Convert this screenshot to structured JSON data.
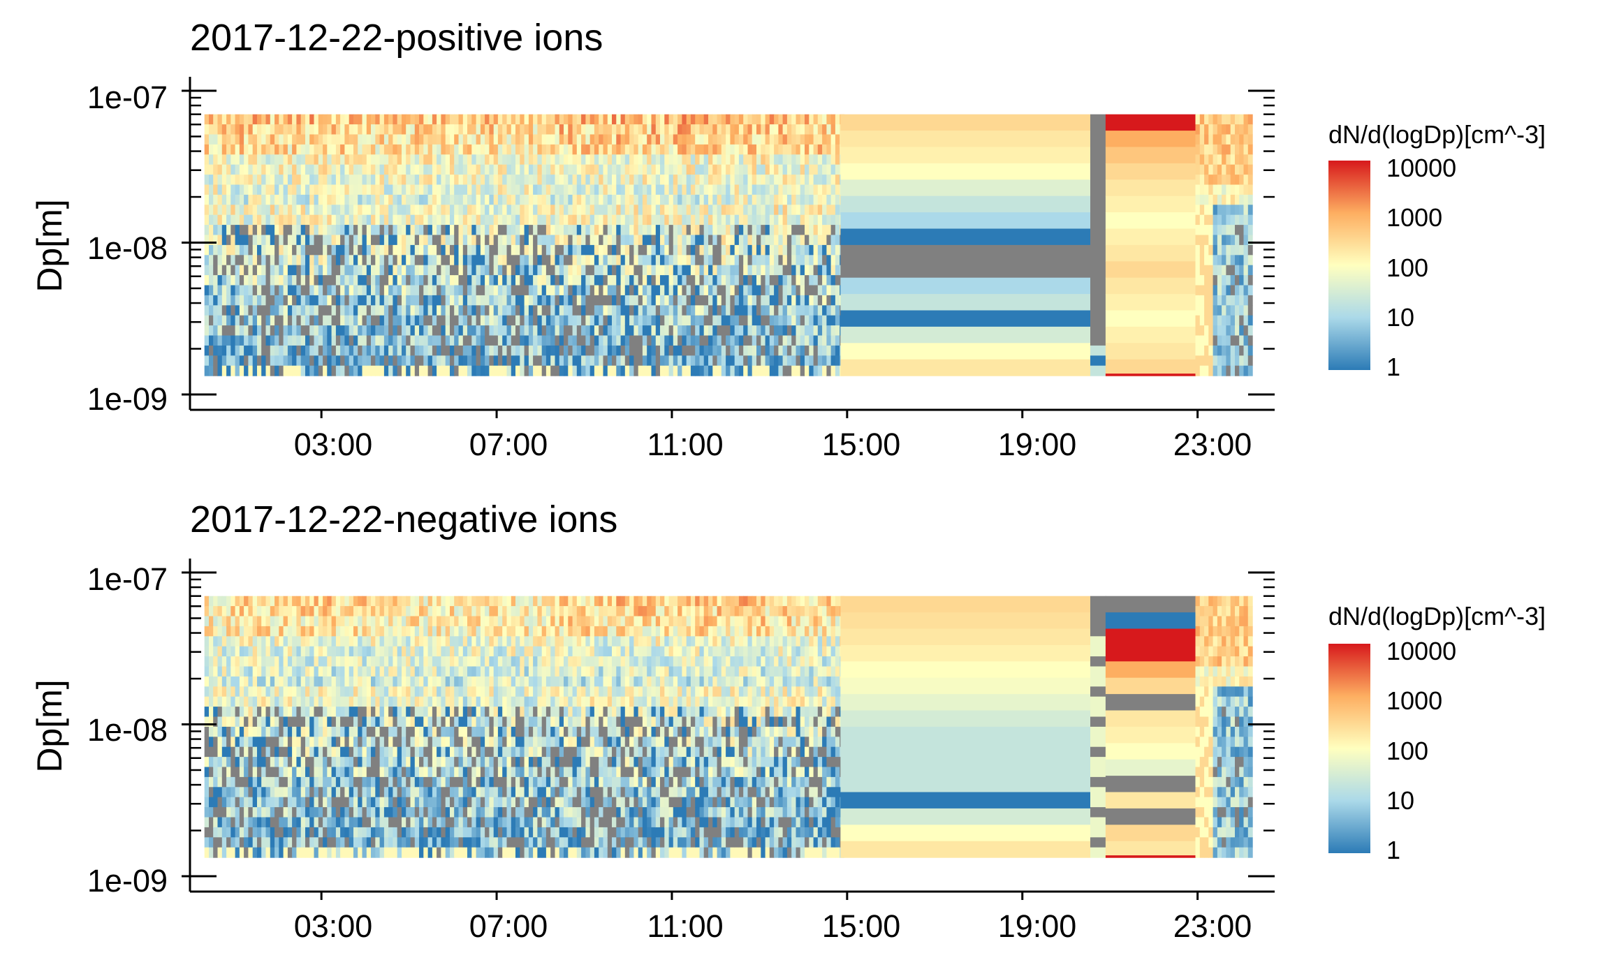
{
  "colors": {
    "scale": [
      "#2c7bb6",
      "#abd9e9",
      "#ffffbf",
      "#fdae61",
      "#d7191c"
    ],
    "missing": "#808080",
    "axis": "#000000"
  },
  "chart_data": [
    {
      "type": "heatmap",
      "title": "2017-12-22-positive ions",
      "xlabel": "",
      "ylabel": "Dp[m]",
      "x_ticks": [
        "03:00",
        "07:00",
        "11:00",
        "15:00",
        "19:00",
        "23:00"
      ],
      "x_tick_hours": [
        3,
        7,
        11,
        15,
        19,
        23
      ],
      "xlim_hours": [
        0,
        24.6
      ],
      "y_ticks": [
        "1e-07",
        "1e-08",
        "1e-09"
      ],
      "y_scale": "log",
      "ylim_m": [
        1e-09,
        1e-07
      ],
      "color_scale": "log",
      "legend": {
        "title": "dN/d(logDp)[cm^-3]",
        "ticks": [
          "10000",
          "1000",
          "100",
          "10",
          "1"
        ],
        "position": "right"
      },
      "approx_series": [
        {
          "time_range": "00:20-14:50",
          "size_range_m": [
            1.3e-09,
            7e-08
          ],
          "description_values": {
            "large_particles_dNdlogDp": 300,
            "small_particles_dNdlogDp": 5
          }
        },
        {
          "time_range": "14:50-20:20",
          "layered_dNdlogDp": [
            300,
            200,
            150,
            100,
            40,
            20,
            10,
            1,
            null,
            null,
            10,
            20,
            1,
            30,
            100,
            200
          ]
        },
        {
          "time_range": "20:40-22:50",
          "layered_dNdlogDp": [
            10000,
            1000,
            500,
            300,
            200,
            150,
            100,
            150,
            200,
            300,
            200,
            150,
            100,
            150,
            200,
            300
          ]
        }
      ]
    },
    {
      "type": "heatmap",
      "title": "2017-12-22-negative ions",
      "xlabel": "",
      "ylabel": "Dp[m]",
      "x_ticks": [
        "03:00",
        "07:00",
        "11:00",
        "15:00",
        "19:00",
        "23:00"
      ],
      "x_tick_hours": [
        3,
        7,
        11,
        15,
        19,
        23
      ],
      "xlim_hours": [
        0,
        24.6
      ],
      "y_ticks": [
        "1e-07",
        "1e-08",
        "1e-09"
      ],
      "y_scale": "log",
      "ylim_m": [
        1e-09,
        1e-07
      ],
      "color_scale": "log",
      "legend": {
        "title": "dN/d(logDp)[cm^-3]",
        "ticks": [
          "10000",
          "1000",
          "100",
          "10",
          "1"
        ],
        "position": "right"
      },
      "approx_series": [
        {
          "time_range": "00:20-14:50",
          "size_range_m": [
            1.3e-09,
            7e-08
          ],
          "description_values": {
            "large_particles_dNdlogDp": 200,
            "small_particles_dNdlogDp": 5
          }
        },
        {
          "time_range": "14:50-20:20",
          "layered_dNdlogDp": [
            300,
            250,
            200,
            150,
            100,
            80,
            50,
            30,
            20,
            20,
            20,
            20,
            1,
            30,
            100,
            200
          ]
        },
        {
          "time_range": "20:40-22:50",
          "layered_dNdlogDp": [
            null,
            1,
            10000,
            10000,
            1000,
            300,
            null,
            200,
            150,
            100,
            50,
            null,
            200,
            null,
            300,
            200
          ]
        }
      ]
    }
  ]
}
